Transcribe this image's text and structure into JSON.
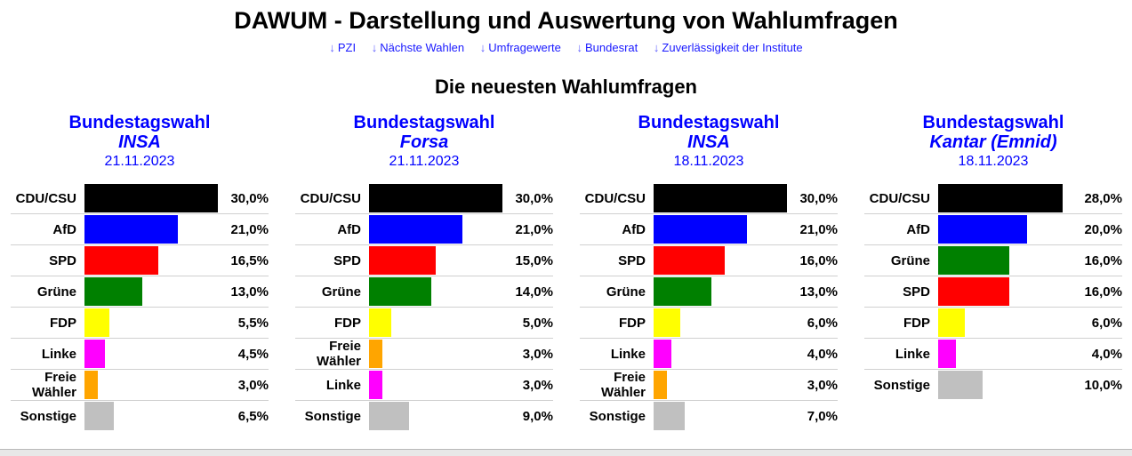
{
  "header": {
    "title": "DAWUM - Darstellung und Auswertung von Wahlumfragen",
    "nav": [
      {
        "arrow": "↓",
        "label": "PZI"
      },
      {
        "arrow": "↓",
        "label": "Nächste Wahlen"
      },
      {
        "arrow": "↓",
        "label": "Umfragewerte"
      },
      {
        "arrow": "↓",
        "label": "Bundesrat"
      },
      {
        "arrow": "↓",
        "label": "Zuverlässigkeit der Institute"
      }
    ],
    "subtitle": "Die neuesten Wahlumfragen"
  },
  "colors": {
    "CDU/CSU": "#000000",
    "AfD": "#0000ff",
    "SPD": "#ff0000",
    "Grüne": "#008000",
    "FDP": "#ffff00",
    "Linke": "#ff00ff",
    "Freie Wähler": "#ffa500",
    "Sonstige": "#c0c0c0"
  },
  "chart_data": [
    {
      "type": "bar",
      "election": "Bundestagswahl",
      "institute": "INSA",
      "date": "21.11.2023",
      "categories": [
        "CDU/CSU",
        "AfD",
        "SPD",
        "Grüne",
        "FDP",
        "Linke",
        "Freie Wähler",
        "Sonstige"
      ],
      "values": [
        30.0,
        21.0,
        16.5,
        13.0,
        5.5,
        4.5,
        3.0,
        6.5
      ],
      "labels": [
        "30,0%",
        "21,0%",
        "16,5%",
        "13,0%",
        "5,5%",
        "4,5%",
        "3,0%",
        "6,5%"
      ]
    },
    {
      "type": "bar",
      "election": "Bundestagswahl",
      "institute": "Forsa",
      "date": "21.11.2023",
      "categories": [
        "CDU/CSU",
        "AfD",
        "SPD",
        "Grüne",
        "FDP",
        "Freie Wähler",
        "Linke",
        "Sonstige"
      ],
      "values": [
        30.0,
        21.0,
        15.0,
        14.0,
        5.0,
        3.0,
        3.0,
        9.0
      ],
      "labels": [
        "30,0%",
        "21,0%",
        "15,0%",
        "14,0%",
        "5,0%",
        "3,0%",
        "3,0%",
        "9,0%"
      ]
    },
    {
      "type": "bar",
      "election": "Bundestagswahl",
      "institute": "INSA",
      "date": "18.11.2023",
      "categories": [
        "CDU/CSU",
        "AfD",
        "SPD",
        "Grüne",
        "FDP",
        "Linke",
        "Freie Wähler",
        "Sonstige"
      ],
      "values": [
        30.0,
        21.0,
        16.0,
        13.0,
        6.0,
        4.0,
        3.0,
        7.0
      ],
      "labels": [
        "30,0%",
        "21,0%",
        "16,0%",
        "13,0%",
        "6,0%",
        "4,0%",
        "3,0%",
        "7,0%"
      ]
    },
    {
      "type": "bar",
      "election": "Bundestagswahl",
      "institute": "Kantar (Emnid)",
      "date": "18.11.2023",
      "categories": [
        "CDU/CSU",
        "AfD",
        "Grüne",
        "SPD",
        "FDP",
        "Linke",
        "Sonstige"
      ],
      "values": [
        28.0,
        20.0,
        16.0,
        16.0,
        6.0,
        4.0,
        10.0
      ],
      "labels": [
        "28,0%",
        "20,0%",
        "16,0%",
        "16,0%",
        "6,0%",
        "4,0%",
        "10,0%"
      ]
    }
  ]
}
